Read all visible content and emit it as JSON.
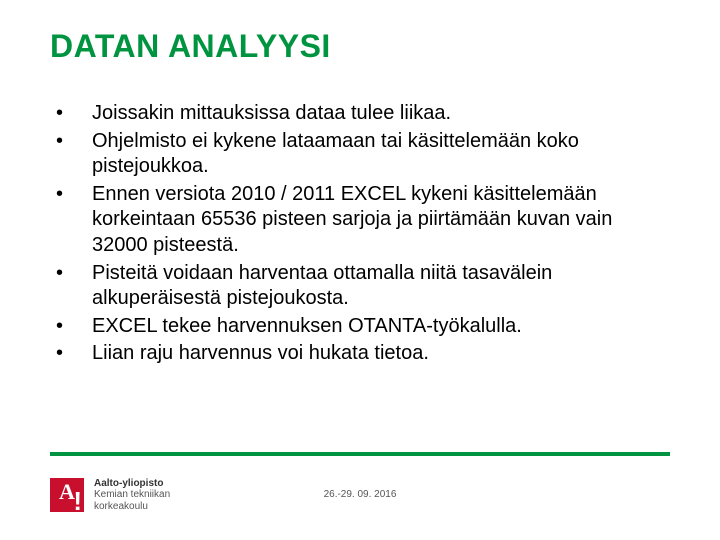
{
  "title": "DATAN ANALYYSI",
  "bullets": [
    "Joissakin mittauksissa dataa tulee liikaa.",
    "Ohjelmisto ei kykene lataamaan tai käsittelemään koko pistejoukkoa.",
    "Ennen versiota 2010 / 2011 EXCEL kykeni käsittelemään korkeintaan 65536 pisteen sarjoja ja piirtämään kuvan vain 32000 pisteestä.",
    "Pisteitä voidaan harventaa ottamalla niitä tasavälein alkuperäisestä pistejoukosta.",
    "EXCEL tekee harvennuksen OTANTA-työkalulla.",
    "Liian raju harvennus voi hukata tietoa."
  ],
  "footer": {
    "logo_letter": "A",
    "logo_mark": "!",
    "line1": "Aalto-yliopisto",
    "line2": "Kemian tekniikan",
    "line3": "korkeakoulu"
  },
  "date": "26.-29. 09. 2016",
  "colors": {
    "accent_green": "#009440",
    "logo_red": "#c8102e",
    "text": "#000000",
    "footer_text": "#555555",
    "background": "#ffffff"
  }
}
